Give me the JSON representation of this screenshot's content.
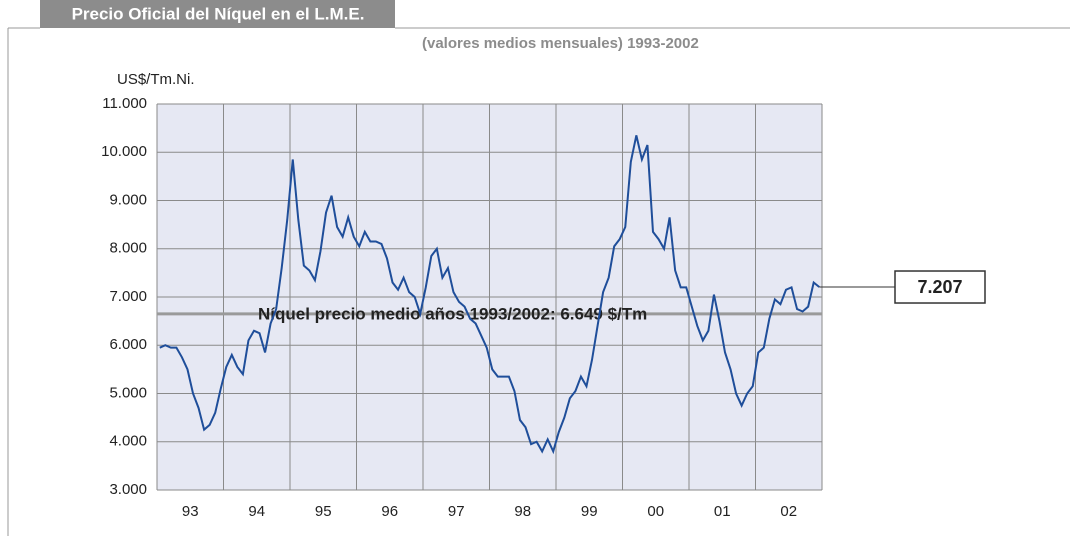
{
  "chart_data": {
    "type": "line",
    "title": "Precio Oficial del Níquel en el L.M.E.",
    "subtitle": "(valores medios mensuales) 1993-2002",
    "y_label": "US$/Tm.Ni.",
    "categories": [
      null,
      null,
      null,
      null,
      null,
      null,
      "93",
      null,
      null,
      null,
      null,
      null,
      null,
      null,
      null,
      null,
      null,
      null,
      "94",
      null,
      null,
      null,
      null,
      null,
      null,
      null,
      null,
      null,
      null,
      null,
      "95",
      null,
      null,
      null,
      null,
      null,
      null,
      null,
      null,
      null,
      null,
      null,
      "96",
      null,
      null,
      null,
      null,
      null,
      null,
      null,
      null,
      null,
      null,
      null,
      "97",
      null,
      null,
      null,
      null,
      null,
      null,
      null,
      null,
      null,
      null,
      null,
      "98",
      null,
      null,
      null,
      null,
      null,
      null,
      null,
      null,
      null,
      null,
      null,
      "99",
      null,
      null,
      null,
      null,
      null,
      null,
      null,
      null,
      null,
      null,
      null,
      "00",
      null,
      null,
      null,
      null,
      null,
      null,
      null,
      null,
      null,
      null,
      null,
      "01",
      null,
      null,
      null,
      null,
      null,
      null,
      null,
      null,
      null,
      null,
      null,
      "02",
      null,
      null,
      null,
      null,
      null
    ],
    "series": [
      {
        "color": "#1f4e9a",
        "values": [
          5950,
          6000,
          5950,
          5950,
          5750,
          5500,
          5000,
          4700,
          4250,
          4350,
          4600,
          5100,
          5550,
          5800,
          5550,
          5400,
          6100,
          6300,
          6250,
          5850,
          6450,
          6750,
          7600,
          8600,
          9850,
          8600,
          7650,
          7550,
          7350,
          7950,
          8750,
          9100,
          8450,
          8250,
          8650,
          8250,
          8050,
          8350,
          8150,
          8150,
          8100,
          7800,
          7300,
          7150,
          7400,
          7100,
          7000,
          6650,
          7200,
          7850,
          8000,
          7400,
          7600,
          7100,
          6900,
          6800,
          6550,
          6450,
          6200,
          5950,
          5500,
          5350,
          5350,
          5350,
          5050,
          4450,
          4300,
          3950,
          4000,
          3800,
          4050,
          3800,
          4200,
          4500,
          4900,
          5050,
          5350,
          5150,
          5700,
          6400,
          7100,
          7400,
          8050,
          8200,
          8450,
          9800,
          10350,
          9850,
          10150,
          8350,
          8200,
          8000,
          8650,
          7550,
          7200,
          7200,
          6800,
          6400,
          6100,
          6300,
          7050,
          6500,
          5850,
          5500,
          5000,
          4750,
          5000,
          5150,
          5850,
          5950,
          6550,
          6950,
          6850,
          7150,
          7200,
          6750,
          6700,
          6800,
          7300,
          7207
        ],
        "value_labels": [
          null,
          null,
          null,
          null,
          null,
          null,
          null,
          null,
          null,
          null,
          null,
          null,
          null,
          null,
          null,
          null,
          null,
          null,
          null,
          null,
          null,
          null,
          null,
          null,
          null,
          null,
          null,
          null,
          null,
          null,
          null,
          null,
          null,
          null,
          null,
          null,
          null,
          null,
          null,
          null,
          null,
          null,
          null,
          null,
          null,
          null,
          null,
          null,
          null,
          null,
          null,
          null,
          null,
          null,
          null,
          null,
          null,
          null,
          null,
          null,
          null,
          null,
          null,
          null,
          null,
          null,
          null,
          null,
          null,
          null,
          null,
          null,
          null,
          null,
          null,
          null,
          null,
          null,
          null,
          null,
          null,
          null,
          null,
          null,
          null,
          null,
          null,
          null,
          null,
          null,
          null,
          null,
          null,
          null,
          null,
          null,
          null,
          null,
          null,
          null,
          null,
          null,
          null,
          null,
          null,
          null,
          null,
          null,
          null,
          null,
          null,
          null,
          null,
          null,
          null,
          null,
          null,
          null,
          null,
          "7.207"
        ]
      }
    ],
    "reference_line": {
      "value": 6649,
      "label": "Níquel precio medio años 1993/2002: 6.649 $/Tm",
      "color": "#9a9a9a"
    },
    "ylim": [
      3000,
      11000
    ],
    "yticks": [
      {
        "value": 3000,
        "label": "3.000"
      },
      {
        "value": 4000,
        "label": "4.000"
      },
      {
        "value": 5000,
        "label": "5.000"
      },
      {
        "value": 6000,
        "label": "6.000"
      },
      {
        "value": 7000,
        "label": "7.000"
      },
      {
        "value": 8000,
        "label": "8.000"
      },
      {
        "value": 9000,
        "label": "9.000"
      },
      {
        "value": 10000,
        "label": "10.000"
      },
      {
        "value": 11000,
        "label": "11.000"
      }
    ],
    "grid": true
  }
}
